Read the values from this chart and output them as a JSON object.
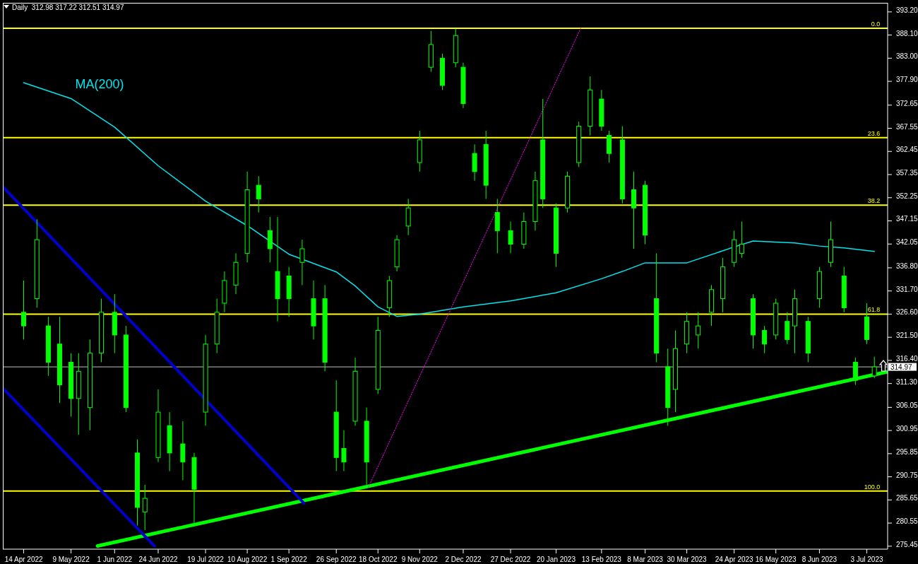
{
  "chart_data": {
    "type": "candlestick",
    "title": "Daily  312.98 317.22 312.51 314.97",
    "color": "#00ff00",
    "x": [
      "2022-04-14",
      "2022-04-21",
      "2022-04-27",
      "2022-05-03",
      "2022-05-09",
      "2022-05-13",
      "2022-05-19",
      "2022-05-25",
      "2022-06-01",
      "2022-06-07",
      "2022-06-13",
      "2022-06-17",
      "2022-06-24",
      "2022-06-30",
      "2022-07-07",
      "2022-07-13",
      "2022-07-19",
      "2022-07-25",
      "2022-07-29",
      "2022-08-04",
      "2022-08-10",
      "2022-08-16",
      "2022-08-22",
      "2022-08-26",
      "2022-09-01",
      "2022-09-08",
      "2022-09-14",
      "2022-09-20",
      "2022-09-26",
      "2022-09-30",
      "2022-10-06",
      "2022-10-12",
      "2022-10-18",
      "2022-10-24",
      "2022-10-28",
      "2022-11-03",
      "2022-11-09",
      "2022-11-15",
      "2022-11-21",
      "2022-11-28",
      "2022-12-02",
      "2022-12-08",
      "2022-12-14",
      "2022-12-20",
      "2022-12-27",
      "2023-01-03",
      "2023-01-09",
      "2023-01-13",
      "2023-01-20",
      "2023-01-26",
      "2023-02-01",
      "2023-02-07",
      "2023-02-13",
      "2023-02-17",
      "2023-02-24",
      "2023-03-02",
      "2023-03-08",
      "2023-03-14",
      "2023-03-20",
      "2023-03-24",
      "2023-03-30",
      "2023-04-05",
      "2023-04-12",
      "2023-04-18",
      "2023-04-24",
      "2023-04-28",
      "2023-05-04",
      "2023-05-10",
      "2023-05-16",
      "2023-05-22",
      "2023-05-26",
      "2023-06-02",
      "2023-06-08",
      "2023-06-14",
      "2023-06-21",
      "2023-06-27",
      "2023-07-03",
      "2023-07-07"
    ],
    "ohlc": [
      [
        327,
        334,
        321,
        324
      ],
      [
        330,
        347.5,
        328,
        343
      ],
      [
        324,
        326,
        313,
        316
      ],
      [
        320,
        326,
        307,
        311
      ],
      [
        316,
        318,
        304,
        308
      ],
      [
        308,
        318,
        300,
        314
      ],
      [
        306,
        321,
        301,
        318
      ],
      [
        318,
        330,
        316,
        327
      ],
      [
        327,
        331,
        318,
        322
      ],
      [
        322,
        324,
        305,
        306
      ],
      [
        296,
        299,
        280,
        284
      ],
      [
        283,
        289,
        279,
        286
      ],
      [
        295,
        310,
        294,
        305
      ],
      [
        302,
        305,
        292,
        296
      ],
      [
        298,
        303,
        290,
        294
      ],
      [
        295,
        296,
        280,
        288
      ],
      [
        305,
        322,
        302,
        320
      ],
      [
        320,
        330,
        318,
        327
      ],
      [
        329,
        336,
        327,
        334
      ],
      [
        333,
        340,
        331,
        338
      ],
      [
        340,
        358,
        338,
        354
      ],
      [
        355,
        357,
        349,
        352
      ],
      [
        345,
        348,
        338,
        341
      ],
      [
        336,
        348,
        325,
        330
      ],
      [
        335,
        337,
        326,
        330
      ],
      [
        338,
        343,
        333,
        341
      ],
      [
        330,
        334,
        321,
        324
      ],
      [
        330,
        333,
        314,
        316
      ],
      [
        305,
        312,
        292,
        295
      ],
      [
        297,
        301,
        292,
        294
      ],
      [
        303,
        317,
        302,
        314
      ],
      [
        303,
        306,
        289,
        294
      ],
      [
        310,
        326,
        309,
        323
      ],
      [
        328,
        335,
        326,
        334
      ],
      [
        337,
        344,
        336,
        343
      ],
      [
        346,
        352,
        344,
        350
      ],
      [
        360,
        367,
        358,
        365
      ],
      [
        381,
        389,
        380,
        386
      ],
      [
        383,
        384,
        376,
        377
      ],
      [
        382,
        389.5,
        381,
        388
      ],
      [
        381,
        382,
        372,
        373
      ],
      [
        362,
        364,
        356,
        358
      ],
      [
        364,
        367,
        352,
        355
      ],
      [
        349,
        352,
        340,
        345
      ],
      [
        345,
        347,
        340,
        342
      ],
      [
        342,
        349,
        341,
        347
      ],
      [
        347,
        358,
        345,
        356
      ],
      [
        365,
        374,
        350,
        352
      ],
      [
        350,
        351,
        337,
        340
      ],
      [
        350,
        358,
        349,
        357
      ],
      [
        360,
        369,
        359,
        368
      ],
      [
        368,
        379,
        366,
        376
      ],
      [
        374,
        376,
        367,
        368
      ],
      [
        366,
        367,
        360,
        362
      ],
      [
        365,
        368,
        351,
        352
      ],
      [
        354,
        358,
        341,
        350
      ],
      [
        355,
        356,
        342,
        344
      ],
      [
        330,
        340,
        316,
        318
      ],
      [
        315,
        319,
        302,
        306
      ],
      [
        310,
        323,
        305,
        319
      ],
      [
        320,
        327,
        318,
        325
      ],
      [
        322,
        327,
        319,
        324
      ],
      [
        327,
        333,
        324,
        332
      ],
      [
        330,
        339,
        327,
        337
      ],
      [
        338,
        345,
        337,
        343
      ],
      [
        340,
        347,
        339,
        342
      ],
      [
        330,
        331,
        319,
        322
      ],
      [
        323,
        324,
        318,
        320
      ],
      [
        322,
        330,
        321,
        329
      ],
      [
        325,
        327,
        320,
        321
      ],
      [
        324,
        332,
        318,
        330
      ],
      [
        325,
        326,
        316,
        318
      ],
      [
        330,
        337,
        328,
        336
      ],
      [
        338,
        347,
        337,
        343
      ],
      [
        335,
        337,
        327,
        328
      ],
      [
        316,
        317,
        311,
        312
      ],
      [
        326,
        329,
        320,
        321
      ],
      [
        312.98,
        317.22,
        312.51,
        314.97
      ]
    ],
    "series": [
      {
        "name": "MA(200)",
        "type": "line",
        "color": "#00e5ee",
        "x": [
          "2022-04-14",
          "2022-05-09",
          "2022-06-01",
          "2022-06-24",
          "2022-07-19",
          "2022-08-10",
          "2022-09-01",
          "2022-09-26",
          "2022-10-06",
          "2022-10-18",
          "2022-10-28",
          "2022-11-09",
          "2022-12-02",
          "2022-12-27",
          "2023-01-20",
          "2023-02-13",
          "2023-02-24",
          "2023-03-08",
          "2023-03-30",
          "2023-04-24",
          "2023-05-04",
          "2023-05-26",
          "2023-06-08",
          "2023-06-21",
          "2023-07-07"
        ],
        "values": [
          377.6,
          374.1,
          367.8,
          359.3,
          351.5,
          346.1,
          339.8,
          335.9,
          332.8,
          328.2,
          326.1,
          326.6,
          328.2,
          329.5,
          331.3,
          334.4,
          336.0,
          337.9,
          337.9,
          341.4,
          342.7,
          342.3,
          341.6,
          341.2,
          340.4
        ]
      },
      {
        "type": "line",
        "color": "#00ff00",
        "x": [
          "2022-05-23",
          "2023-07-14"
        ],
        "values": [
          275.5,
          313.9
        ]
      },
      {
        "type": "line",
        "color": "#0000cc",
        "x": [
          "2022-04-03",
          "2022-09-09"
        ],
        "values": [
          354.7,
          284.9
        ]
      },
      {
        "type": "line",
        "color": "#0000cc",
        "x": [
          "2022-04-03",
          "2022-06-22"
        ],
        "values": [
          310.3,
          275.5
        ]
      },
      {
        "type": "line",
        "color": "#ff00ff",
        "line_style": "dotted",
        "x": [
          "2022-10-13",
          "2023-02-02"
        ],
        "values": [
          288.5,
          389.6
        ]
      }
    ],
    "ref_lines": [
      {
        "axis": "y",
        "value": 389.6,
        "color": "#ffff00"
      },
      {
        "axis": "y",
        "value": 365.5,
        "color": "#ffff00"
      },
      {
        "axis": "y",
        "value": 350.6,
        "color": "#ffff00"
      },
      {
        "axis": "y",
        "value": 326.6,
        "color": "#ffff00"
      },
      {
        "axis": "y",
        "value": 287.6,
        "color": "#ffff00"
      },
      {
        "axis": "y",
        "value": 314.97,
        "label": "314.97",
        "color": "#c0c0c0"
      }
    ],
    "annotations": [
      {
        "text": "0.0",
        "x": "2023-07-10",
        "y": 389.6
      },
      {
        "text": "23.6",
        "x": "2023-07-10",
        "y": 365.5
      },
      {
        "text": "38.2",
        "x": "2023-07-10",
        "y": 350.6
      },
      {
        "text": "61.8",
        "x": "2023-07-10",
        "y": 326.6
      },
      {
        "text": "100.0",
        "x": "2023-07-10",
        "y": 287.6
      }
    ],
    "xlim": [
      "2022-04-03",
      "2023-07-14"
    ],
    "xticks": [
      {
        "value": "2022-04-14",
        "label": "14 Apr 2022"
      },
      {
        "value": "2022-05-09",
        "label": "9 May 2022"
      },
      {
        "value": "2022-06-01",
        "label": "1 Jun 2022"
      },
      {
        "value": "2022-06-24",
        "label": "24 Jun 2022"
      },
      {
        "value": "2022-07-19",
        "label": "19 Jul 2022"
      },
      {
        "value": "2022-08-10",
        "label": "10 Aug 2022"
      },
      {
        "value": "2022-09-01",
        "label": "1 Sep 2022"
      },
      {
        "value": "2022-09-26",
        "label": "26 Sep 2022"
      },
      {
        "value": "2022-10-18",
        "label": "18 Oct 2022"
      },
      {
        "value": "2022-11-09",
        "label": "9 Nov 2022"
      },
      {
        "value": "2022-12-02",
        "label": "2 Dec 2022"
      },
      {
        "value": "2022-12-27",
        "label": "27 Dec 2022"
      },
      {
        "value": "2023-01-20",
        "label": "20 Jan 2023"
      },
      {
        "value": "2023-02-13",
        "label": "13 Feb 2023"
      },
      {
        "value": "2023-03-08",
        "label": "8 Mar 2023"
      },
      {
        "value": "2023-03-30",
        "label": "30 Mar 2023"
      },
      {
        "value": "2023-04-24",
        "label": "24 Apr 2023"
      },
      {
        "value": "2023-05-16",
        "label": "16 May 2023"
      },
      {
        "value": "2023-06-08",
        "label": "8 Jun 2023"
      },
      {
        "value": "2023-07-03",
        "label": "3 Jul 2023"
      }
    ],
    "ylim": [
      274.8,
      395.2
    ],
    "yticks": [
      {
        "value": 393.2,
        "label": "393.20"
      },
      {
        "value": 388.1,
        "label": "388.10"
      },
      {
        "value": 383,
        "label": "383.00"
      },
      {
        "value": 377.9,
        "label": "377.90"
      },
      372.65,
      367.55,
      362.45,
      357.35,
      352.25,
      347.15,
      342.05,
      {
        "value": 336.8,
        "label": "336.80"
      },
      {
        "value": 331.7,
        "label": "331.70"
      },
      {
        "value": 326.6,
        "label": "326.60"
      },
      {
        "value": 321.5,
        "label": "321.50"
      },
      {
        "value": 316.4,
        "label": "316.40"
      },
      {
        "value": 311.3,
        "label": "311.30"
      },
      306.05,
      300.95,
      295.85,
      290.75,
      285.65,
      280.55,
      275.45
    ],
    "log": false
  }
}
